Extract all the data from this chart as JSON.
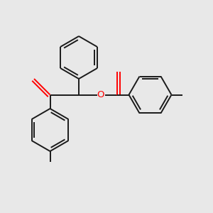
{
  "bg_color": "#e8e8e8",
  "bond_color": "#1a1a1a",
  "oxygen_color": "#ff0000",
  "line_width": 1.4,
  "figsize": [
    3.0,
    3.0
  ],
  "dpi": 100
}
